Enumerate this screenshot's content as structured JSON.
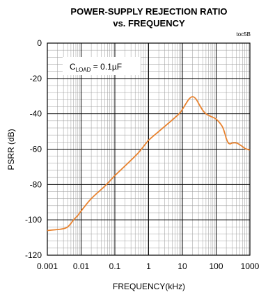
{
  "chart_data": {
    "type": "line",
    "title": "POWER-SUPPLY REJECTION RATIO",
    "subtitle": "vs. FREQUENCY",
    "figure_id": "toc5B",
    "xlabel": "FREQUENCY(kHz)",
    "ylabel": "PSRR (dB)",
    "x_scale": "log",
    "xlim": [
      0.001,
      1000
    ],
    "ylim": [
      -120,
      0
    ],
    "x_ticks": [
      0.001,
      0.01,
      0.1,
      1,
      10,
      100,
      1000
    ],
    "x_tick_labels": [
      "0.001",
      "0.01",
      "0.1",
      "1",
      "10",
      "100",
      "1000"
    ],
    "y_ticks": [
      0,
      -20,
      -40,
      -60,
      -80,
      -100,
      -120
    ],
    "y_tick_labels": [
      "0",
      "-20",
      "-40",
      "-60",
      "-80",
      "-100",
      "-120"
    ],
    "grid": true,
    "annotation": {
      "main": "C",
      "sub": "LOAD",
      "rest": " = 0.1µF"
    },
    "series": [
      {
        "color": "#E8822E",
        "x": [
          0.001,
          0.002,
          0.003,
          0.004,
          0.005,
          0.006,
          0.008,
          0.01,
          0.02,
          0.05,
          0.1,
          0.2,
          0.5,
          1,
          2,
          5,
          8,
          10,
          13,
          16,
          20,
          25,
          30,
          40,
          50,
          70,
          100,
          150,
          180,
          200,
          230,
          260,
          300,
          400,
          500,
          600,
          700,
          800,
          1000
        ],
        "y": [
          -106,
          -105.5,
          -105,
          -104,
          -102,
          -100,
          -97.5,
          -95,
          -88,
          -81,
          -75,
          -69.5,
          -62,
          -55,
          -50,
          -43.5,
          -40,
          -37.5,
          -34,
          -31.5,
          -30.3,
          -31.5,
          -34,
          -38,
          -40,
          -41.5,
          -43,
          -47,
          -51,
          -54,
          -56.5,
          -57,
          -56.5,
          -56.5,
          -57.5,
          -58.5,
          -59.5,
          -60,
          -60.5
        ]
      }
    ]
  }
}
